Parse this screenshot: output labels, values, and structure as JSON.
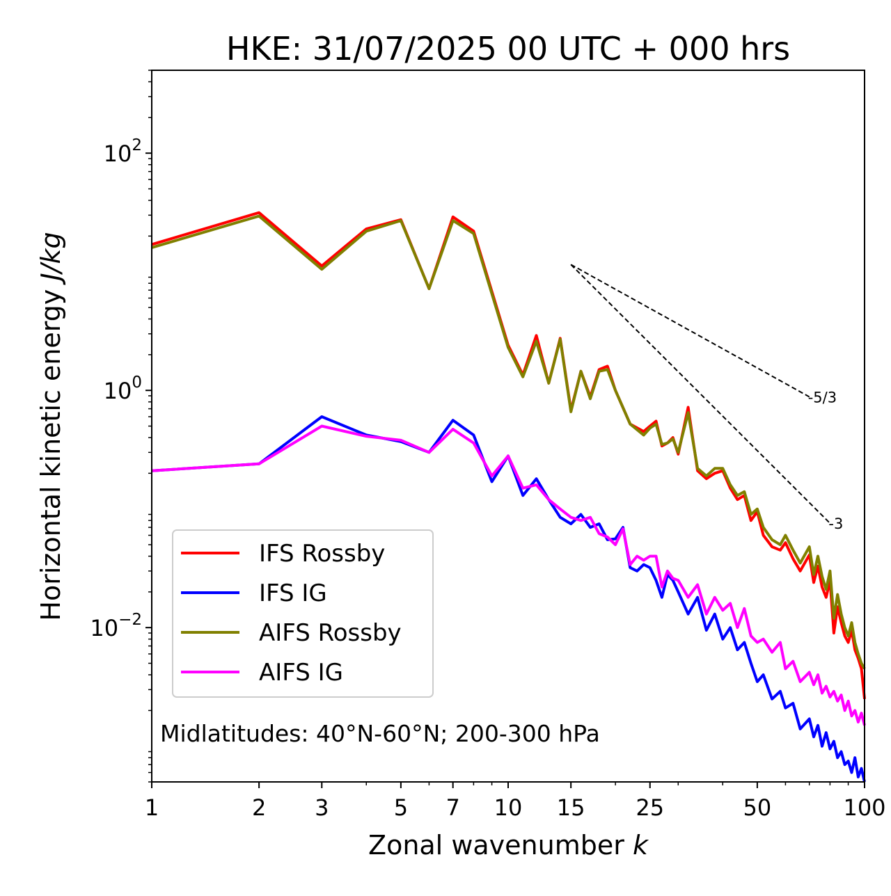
{
  "chart_data": {
    "type": "line",
    "title": "HKE: 31/07/2025 00 UTC + 000 hrs",
    "xlabel": "Zonal wavenumber",
    "xlabel_var": "k",
    "ylabel": "Horizontal kinetic energy",
    "ylabel_unit": "J/kg",
    "xscale": "log",
    "yscale": "log",
    "xlim": [
      1,
      100
    ],
    "ylim": [
      0.0005,
      500
    ],
    "x_ticks": [
      1,
      2,
      3,
      5,
      7,
      10,
      15,
      25,
      50,
      100
    ],
    "x_tick_labels": [
      "1",
      "2",
      "3",
      "5",
      "7",
      "10",
      "15",
      "25",
      "50",
      "100"
    ],
    "y_ticks": [
      0.01,
      1,
      100
    ],
    "y_tick_bases": [
      "10",
      "10",
      "10"
    ],
    "y_tick_exps": [
      "−2",
      "0",
      "2"
    ],
    "annotation": "Midlatitudes: 40°N-60°N; 200-300 hPa",
    "legend_position": "lower-left",
    "reference_slopes": [
      {
        "label": "-5/3",
        "exponent": -1.6667,
        "x_start": 15,
        "x_end": 70,
        "y_start": 11.5
      },
      {
        "label": "-3",
        "exponent": -3,
        "x_start": 15,
        "x_end": 80,
        "y_start": 11.5
      }
    ],
    "series": [
      {
        "name": "IFS Rossby",
        "color": "#ff0000",
        "x": [
          1,
          2,
          3,
          4,
          5,
          6,
          7,
          8,
          10,
          11,
          12,
          13,
          14,
          15,
          16,
          17,
          18,
          19,
          20,
          22,
          24,
          25,
          26,
          27,
          28,
          29,
          30,
          32,
          34,
          36,
          38,
          40,
          42,
          44,
          46,
          48,
          50,
          52,
          55,
          58,
          60,
          63,
          66,
          70,
          72,
          74,
          76,
          78,
          80,
          82,
          84,
          86,
          88,
          90,
          92,
          94,
          96,
          98,
          100
        ],
        "y": [
          17,
          31.5,
          11.2,
          23,
          27.5,
          7.2,
          29,
          22,
          2.4,
          1.35,
          2.9,
          1.15,
          2.75,
          0.68,
          1.45,
          0.88,
          1.5,
          1.6,
          1.0,
          0.52,
          0.45,
          0.5,
          0.55,
          0.34,
          0.36,
          0.4,
          0.29,
          0.72,
          0.21,
          0.18,
          0.2,
          0.21,
          0.15,
          0.12,
          0.13,
          0.08,
          0.095,
          0.06,
          0.048,
          0.045,
          0.052,
          0.038,
          0.03,
          0.041,
          0.024,
          0.033,
          0.022,
          0.018,
          0.025,
          0.009,
          0.015,
          0.011,
          0.0085,
          0.0075,
          0.0095,
          0.0065,
          0.0055,
          0.0045,
          0.0025
        ]
      },
      {
        "name": "IFS IG",
        "color": "#0000ff",
        "x": [
          1,
          2,
          3,
          4,
          5,
          6,
          7,
          8,
          9,
          10,
          11,
          12,
          13,
          14,
          15,
          16,
          17,
          18,
          19,
          20,
          21,
          22,
          23,
          24,
          25,
          26,
          27,
          28,
          29,
          30,
          32,
          34,
          36,
          38,
          40,
          42,
          44,
          46,
          48,
          50,
          52,
          55,
          58,
          60,
          63,
          66,
          70,
          72,
          74,
          76,
          78,
          80,
          82,
          84,
          86,
          88,
          90,
          92,
          94,
          96,
          98,
          100
        ],
        "y": [
          0.21,
          0.24,
          0.6,
          0.42,
          0.37,
          0.3,
          0.56,
          0.42,
          0.17,
          0.28,
          0.13,
          0.18,
          0.12,
          0.085,
          0.075,
          0.09,
          0.07,
          0.075,
          0.055,
          0.056,
          0.07,
          0.032,
          0.03,
          0.034,
          0.032,
          0.025,
          0.018,
          0.028,
          0.025,
          0.02,
          0.013,
          0.018,
          0.0095,
          0.013,
          0.008,
          0.01,
          0.0065,
          0.0075,
          0.005,
          0.0035,
          0.004,
          0.0025,
          0.0029,
          0.0021,
          0.0023,
          0.0014,
          0.0017,
          0.0012,
          0.0015,
          0.001,
          0.0013,
          0.00095,
          0.0011,
          0.0008,
          0.0009,
          0.0007,
          0.00075,
          0.0006,
          0.0008,
          0.00055,
          0.00065,
          0.0005
        ]
      },
      {
        "name": "AIFS Rossby",
        "color": "#808000",
        "x": [
          1,
          2,
          3,
          4,
          5,
          6,
          7,
          8,
          10,
          11,
          12,
          13,
          14,
          15,
          16,
          17,
          18,
          19,
          20,
          22,
          24,
          25,
          26,
          27,
          28,
          29,
          30,
          32,
          34,
          36,
          38,
          40,
          42,
          44,
          46,
          48,
          50,
          52,
          55,
          58,
          60,
          63,
          66,
          70,
          72,
          74,
          76,
          78,
          80,
          82,
          84,
          86,
          88,
          90,
          92,
          94,
          96,
          98,
          100
        ],
        "y": [
          16,
          29.5,
          10.5,
          22,
          27,
          7.2,
          27,
          21,
          2.3,
          1.3,
          2.6,
          1.15,
          2.7,
          0.66,
          1.45,
          0.85,
          1.45,
          1.5,
          1.0,
          0.52,
          0.42,
          0.48,
          0.52,
          0.35,
          0.36,
          0.39,
          0.3,
          0.65,
          0.22,
          0.19,
          0.22,
          0.22,
          0.16,
          0.13,
          0.14,
          0.09,
          0.1,
          0.07,
          0.055,
          0.05,
          0.06,
          0.045,
          0.035,
          0.048,
          0.028,
          0.04,
          0.027,
          0.021,
          0.03,
          0.012,
          0.019,
          0.013,
          0.01,
          0.0085,
          0.011,
          0.0075,
          0.006,
          0.005,
          0.0045
        ]
      },
      {
        "name": "AIFS IG",
        "color": "#ff00ff",
        "x": [
          1,
          2,
          3,
          4,
          5,
          6,
          7,
          8,
          9,
          10,
          11,
          12,
          13,
          14,
          15,
          16,
          17,
          18,
          19,
          20,
          21,
          22,
          23,
          24,
          25,
          26,
          27,
          28,
          29,
          30,
          32,
          34,
          36,
          38,
          40,
          42,
          44,
          46,
          48,
          50,
          52,
          55,
          58,
          60,
          63,
          66,
          70,
          72,
          74,
          76,
          78,
          80,
          82,
          84,
          86,
          88,
          90,
          92,
          94,
          96,
          98,
          100
        ],
        "y": [
          0.21,
          0.24,
          0.5,
          0.41,
          0.38,
          0.3,
          0.47,
          0.36,
          0.19,
          0.28,
          0.15,
          0.16,
          0.12,
          0.1,
          0.085,
          0.08,
          0.085,
          0.062,
          0.058,
          0.05,
          0.068,
          0.034,
          0.04,
          0.037,
          0.04,
          0.04,
          0.022,
          0.03,
          0.026,
          0.025,
          0.018,
          0.023,
          0.013,
          0.018,
          0.014,
          0.016,
          0.01,
          0.0145,
          0.0085,
          0.0075,
          0.008,
          0.0062,
          0.0075,
          0.0045,
          0.0052,
          0.0035,
          0.0042,
          0.0033,
          0.004,
          0.0028,
          0.0032,
          0.0026,
          0.0029,
          0.0024,
          0.0027,
          0.002,
          0.0024,
          0.0018,
          0.002,
          0.0016,
          0.0019,
          0.0015
        ]
      }
    ]
  }
}
